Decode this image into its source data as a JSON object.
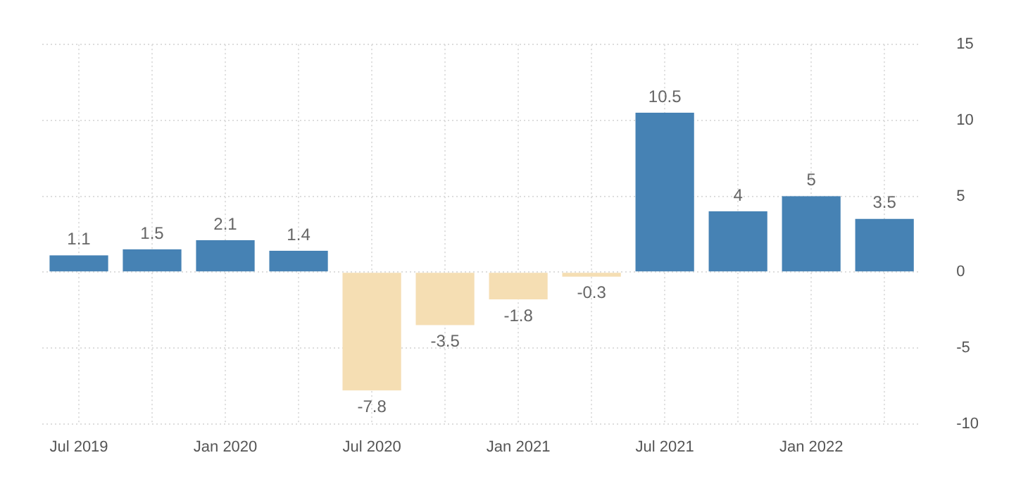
{
  "chart_data": {
    "type": "bar",
    "categories": [
      "Jul 2019",
      null,
      "Jan 2020",
      null,
      "Jul 2020",
      null,
      "Jan 2021",
      null,
      "Jul 2021",
      null,
      "Jan 2022",
      null
    ],
    "values": [
      1.1,
      1.5,
      2.1,
      1.4,
      -7.8,
      -3.5,
      -1.8,
      -0.3,
      10.5,
      4,
      5,
      3.5
    ],
    "colors": [
      "#4682b4",
      "#4682b4",
      "#4682b4",
      "#4682b4",
      "#f5deb3",
      "#f5deb3",
      "#f5deb3",
      "#f5deb3",
      "#4682b4",
      "#4682b4",
      "#4682b4",
      "#4682b4"
    ],
    "ylim": [
      -10,
      15
    ],
    "yticks": [
      -10,
      -5,
      0,
      5,
      10,
      15
    ],
    "grid": true,
    "legend": false,
    "data_labels": true
  }
}
